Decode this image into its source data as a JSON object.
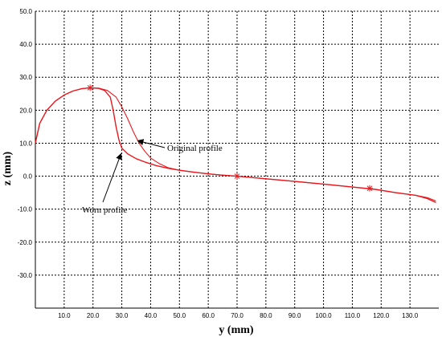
{
  "chart_data": {
    "type": "line",
    "xlabel": "y (mm)",
    "ylabel": "z (mm)",
    "xlim": [
      0,
      140
    ],
    "ylim": [
      -40,
      50
    ],
    "x_ticks": [
      10,
      20,
      30,
      40,
      50,
      60,
      70,
      80,
      90,
      100,
      110,
      120,
      130
    ],
    "x_tick_labels": [
      "10.0",
      "20.0",
      "30.0",
      "40.0",
      "50.0",
      "60.0",
      "70.0",
      "80.0",
      "90.0",
      "100.0",
      "110.0",
      "120.0",
      "130.0"
    ],
    "y_ticks": [
      50,
      40,
      30,
      20,
      10,
      0,
      -10,
      -20,
      -30
    ],
    "y_tick_labels": [
      "50.0",
      "40.0",
      "30.0",
      "20.0",
      "10.0",
      "0.0",
      "-10.0",
      "-20.0",
      "-30.0"
    ],
    "grid": true,
    "line_color": "#e8191e",
    "series": [
      {
        "name": "Original profile",
        "points": [
          [
            0,
            10
          ],
          [
            1.5,
            16
          ],
          [
            4,
            20
          ],
          [
            7,
            22.8
          ],
          [
            10,
            24.6
          ],
          [
            13,
            25.8
          ],
          [
            16,
            26.5
          ],
          [
            19,
            26.8
          ],
          [
            22,
            26.7
          ],
          [
            25,
            26
          ],
          [
            28,
            24
          ],
          [
            30,
            21
          ],
          [
            32,
            17.5
          ],
          [
            34,
            13.5
          ],
          [
            36,
            10
          ],
          [
            38,
            7.5
          ],
          [
            40,
            5.5
          ],
          [
            43,
            3.8
          ],
          [
            46,
            2.6
          ],
          [
            50,
            1.8
          ],
          [
            55,
            1.2
          ],
          [
            60,
            0.7
          ],
          [
            65,
            0.3
          ],
          [
            70,
            0
          ],
          [
            80,
            -0.8
          ],
          [
            90,
            -1.6
          ],
          [
            100,
            -2.4
          ],
          [
            110,
            -3.3
          ],
          [
            118,
            -4
          ],
          [
            125,
            -5
          ],
          [
            132,
            -5.8
          ],
          [
            136,
            -6.5
          ],
          [
            139,
            -7.5
          ]
        ]
      },
      {
        "name": "Worn profile",
        "points": [
          [
            0,
            10
          ],
          [
            1.5,
            16
          ],
          [
            4,
            20
          ],
          [
            7,
            22.8
          ],
          [
            10,
            24.6
          ],
          [
            13,
            25.8
          ],
          [
            16,
            26.5
          ],
          [
            19,
            26.8
          ],
          [
            22,
            26.6
          ],
          [
            24,
            26
          ],
          [
            26,
            24
          ],
          [
            27,
            20
          ],
          [
            28,
            15
          ],
          [
            29,
            11
          ],
          [
            30,
            8.5
          ],
          [
            32,
            6.8
          ],
          [
            35,
            5.3
          ],
          [
            38,
            4.3
          ],
          [
            42,
            3.2
          ],
          [
            46,
            2.4
          ],
          [
            50,
            1.8
          ],
          [
            55,
            1.2
          ],
          [
            60,
            0.7
          ],
          [
            65,
            0.3
          ],
          [
            70,
            0
          ],
          [
            80,
            -0.8
          ],
          [
            90,
            -1.6
          ],
          [
            100,
            -2.4
          ],
          [
            110,
            -3.3
          ],
          [
            118,
            -4
          ],
          [
            125,
            -5
          ],
          [
            132,
            -5.8
          ],
          [
            136,
            -6.8
          ],
          [
            139,
            -8
          ]
        ]
      }
    ],
    "markers": [
      [
        19,
        26.8
      ],
      [
        70,
        0
      ],
      [
        116,
        -3.7
      ]
    ],
    "annotations": [
      {
        "text": "Original profile",
        "target": [
          35,
          11
        ]
      },
      {
        "text": "Worn profile",
        "target": [
          30,
          7.5
        ]
      }
    ]
  }
}
